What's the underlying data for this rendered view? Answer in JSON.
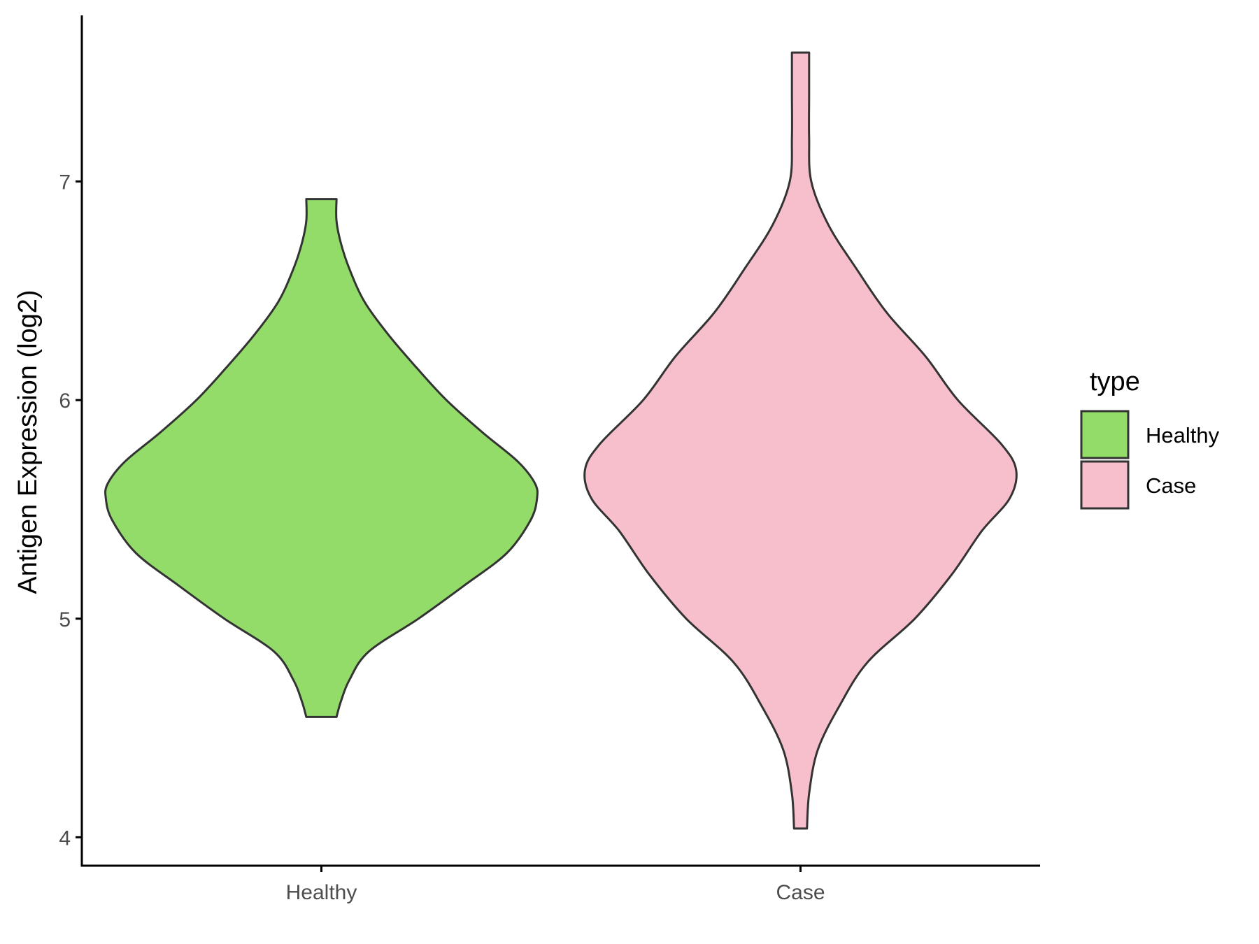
{
  "chart_data": {
    "type": "violin",
    "xlabel": "",
    "ylabel": "Antigen Expression (log2)",
    "categories": [
      "Healthy",
      "Case"
    ],
    "ylim": [
      3.87,
      7.76
    ],
    "yticks": [
      "4",
      "5",
      "6",
      "7"
    ],
    "grid": false,
    "legend": {
      "title": "type",
      "position": "right",
      "entries": [
        {
          "label": "Healthy",
          "color": "#93dc6a"
        },
        {
          "label": "Case",
          "color": "#f7bfcb"
        }
      ]
    },
    "series": [
      {
        "category": "Healthy",
        "color": "#93dc6a",
        "min": 4.55,
        "max": 6.92,
        "density_profile": [
          [
            4.55,
            0.07
          ],
          [
            4.62,
            0.09
          ],
          [
            4.72,
            0.13
          ],
          [
            4.85,
            0.22
          ],
          [
            5.0,
            0.45
          ],
          [
            5.15,
            0.66
          ],
          [
            5.3,
            0.86
          ],
          [
            5.45,
            0.97
          ],
          [
            5.55,
            1.0
          ],
          [
            5.62,
            0.99
          ],
          [
            5.72,
            0.91
          ],
          [
            5.85,
            0.75
          ],
          [
            6.0,
            0.58
          ],
          [
            6.15,
            0.44
          ],
          [
            6.3,
            0.31
          ],
          [
            6.45,
            0.2
          ],
          [
            6.6,
            0.13
          ],
          [
            6.72,
            0.09
          ],
          [
            6.82,
            0.07
          ],
          [
            6.92,
            0.07
          ]
        ]
      },
      {
        "category": "Case",
        "color": "#f7bfcb",
        "min": 4.04,
        "max": 7.59,
        "density_profile": [
          [
            4.04,
            0.03
          ],
          [
            4.2,
            0.04
          ],
          [
            4.4,
            0.08
          ],
          [
            4.6,
            0.18
          ],
          [
            4.8,
            0.31
          ],
          [
            5.0,
            0.53
          ],
          [
            5.2,
            0.7
          ],
          [
            5.4,
            0.84
          ],
          [
            5.55,
            0.97
          ],
          [
            5.68,
            1.0
          ],
          [
            5.8,
            0.93
          ],
          [
            6.0,
            0.73
          ],
          [
            6.2,
            0.58
          ],
          [
            6.4,
            0.4
          ],
          [
            6.6,
            0.26
          ],
          [
            6.8,
            0.13
          ],
          [
            7.0,
            0.05
          ],
          [
            7.2,
            0.04
          ],
          [
            7.4,
            0.04
          ],
          [
            7.59,
            0.04
          ]
        ]
      }
    ]
  }
}
